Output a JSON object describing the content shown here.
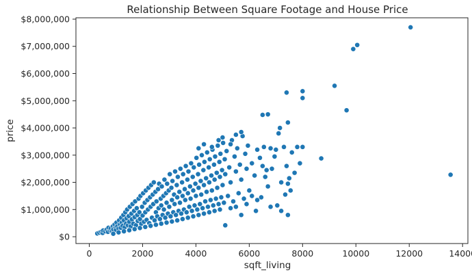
{
  "chart_data": {
    "type": "scatter",
    "title": "Relationship Between Square Footage and House Price",
    "xlabel": "sqft_living",
    "ylabel": "price",
    "xlim": [
      -500,
      14200
    ],
    "ylim": [
      -250000,
      8050000
    ],
    "xticks": [
      0,
      2000,
      4000,
      6000,
      8000,
      10000,
      12000,
      14000
    ],
    "xtick_labels": [
      "0",
      "2000",
      "4000",
      "6000",
      "8000",
      "10000",
      "12000",
      "14000"
    ],
    "yticks": [
      0,
      1000000,
      2000000,
      3000000,
      4000000,
      5000000,
      6000000,
      7000000,
      8000000
    ],
    "ytick_labels": [
      "$0",
      "$1,000,000",
      "$2,000,000",
      "$3,000,000",
      "$4,000,000",
      "$5,000,000",
      "$6,000,000",
      "$7,000,000",
      "$8,000,000"
    ],
    "grid": false,
    "marker_color": "#1f77b4",
    "marker_edge_color": "#ffffff",
    "series": [
      {
        "points": [
          [
            300,
            120000
          ],
          [
            380,
            150000
          ],
          [
            450,
            180000
          ],
          [
            500,
            140000
          ],
          [
            520,
            230000
          ],
          [
            600,
            200000
          ],
          [
            650,
            260000
          ],
          [
            700,
            180000
          ],
          [
            720,
            330000
          ],
          [
            780,
            240000
          ],
          [
            800,
            300000
          ],
          [
            850,
            210000
          ],
          [
            880,
            380000
          ],
          [
            900,
            270000
          ],
          [
            950,
            450000
          ],
          [
            980,
            320000
          ],
          [
            1000,
            250000
          ],
          [
            1020,
            520000
          ],
          [
            1050,
            380000
          ],
          [
            1100,
            300000
          ],
          [
            1120,
            600000
          ],
          [
            1150,
            450000
          ],
          [
            1180,
            330000
          ],
          [
            1200,
            700000
          ],
          [
            1220,
            520000
          ],
          [
            1250,
            400000
          ],
          [
            1280,
            800000
          ],
          [
            1300,
            600000
          ],
          [
            1330,
            350000
          ],
          [
            1350,
            900000
          ],
          [
            1380,
            480000
          ],
          [
            1400,
            680000
          ],
          [
            1420,
            1000000
          ],
          [
            1450,
            420000
          ],
          [
            1480,
            760000
          ],
          [
            1500,
            550000
          ],
          [
            1520,
            1100000
          ],
          [
            1550,
            380000
          ],
          [
            1580,
            850000
          ],
          [
            1600,
            640000
          ],
          [
            1620,
            1200000
          ],
          [
            1650,
            480000
          ],
          [
            1680,
            950000
          ],
          [
            1700,
            720000
          ],
          [
            1720,
            1300000
          ],
          [
            1750,
            420000
          ],
          [
            1780,
            1050000
          ],
          [
            1800,
            800000
          ],
          [
            1820,
            580000
          ],
          [
            1850,
            1400000
          ],
          [
            1880,
            900000
          ],
          [
            1900,
            650000
          ],
          [
            1920,
            1500000
          ],
          [
            1950,
            480000
          ],
          [
            1980,
            1100000
          ],
          [
            2000,
            780000
          ],
          [
            2020,
            1600000
          ],
          [
            2050,
            550000
          ],
          [
            2080,
            1250000
          ],
          [
            2100,
            900000
          ],
          [
            2120,
            1700000
          ],
          [
            2150,
            620000
          ],
          [
            2180,
            1350000
          ],
          [
            2200,
            1000000
          ],
          [
            2220,
            1800000
          ],
          [
            2250,
            500000
          ],
          [
            2280,
            1450000
          ],
          [
            2300,
            1100000
          ],
          [
            2320,
            1900000
          ],
          [
            2350,
            700000
          ],
          [
            2380,
            1550000
          ],
          [
            2400,
            1200000
          ],
          [
            2420,
            2000000
          ],
          [
            2450,
            600000
          ],
          [
            2480,
            1650000
          ],
          [
            2500,
            900000
          ],
          [
            2520,
            1300000
          ],
          [
            2550,
            750000
          ],
          [
            2580,
            1750000
          ],
          [
            2600,
            1050000
          ],
          [
            2620,
            1950000
          ],
          [
            2650,
            650000
          ],
          [
            2680,
            1400000
          ],
          [
            2700,
            1150000
          ],
          [
            2720,
            1850000
          ],
          [
            2750,
            800000
          ],
          [
            2780,
            1500000
          ],
          [
            2800,
            1000000
          ],
          [
            2820,
            2100000
          ],
          [
            2850,
            700000
          ],
          [
            2880,
            1600000
          ],
          [
            2900,
            1250000
          ],
          [
            2920,
            1950000
          ],
          [
            2950,
            850000
          ],
          [
            2980,
            1700000
          ],
          [
            3000,
            1100000
          ],
          [
            3020,
            2300000
          ],
          [
            3050,
            750000
          ],
          [
            3080,
            1800000
          ],
          [
            3100,
            1350000
          ],
          [
            3120,
            2050000
          ],
          [
            3150,
            900000
          ],
          [
            3180,
            1550000
          ],
          [
            3200,
            1200000
          ],
          [
            3220,
            2400000
          ],
          [
            3250,
            800000
          ],
          [
            3280,
            1900000
          ],
          [
            3300,
            1450000
          ],
          [
            3320,
            2200000
          ],
          [
            3350,
            950000
          ],
          [
            3380,
            1650000
          ],
          [
            3400,
            1250000
          ],
          [
            3420,
            2500000
          ],
          [
            3450,
            850000
          ],
          [
            3480,
            2000000
          ],
          [
            3500,
            1500000
          ],
          [
            3520,
            2300000
          ],
          [
            3550,
            1000000
          ],
          [
            3580,
            1750000
          ],
          [
            3600,
            1350000
          ],
          [
            3620,
            2600000
          ],
          [
            3650,
            900000
          ],
          [
            3680,
            2100000
          ],
          [
            3700,
            1600000
          ],
          [
            3720,
            2400000
          ],
          [
            3750,
            1100000
          ],
          [
            3780,
            1850000
          ],
          [
            3800,
            1400000
          ],
          [
            3820,
            2700000
          ],
          [
            3850,
            950000
          ],
          [
            3880,
            2200000
          ],
          [
            3900,
            1700000
          ],
          [
            3920,
            2550000
          ],
          [
            3950,
            1150000
          ],
          [
            3980,
            1950000
          ],
          [
            4000,
            1500000
          ],
          [
            4020,
            2900000
          ],
          [
            4050,
            1000000
          ],
          [
            4080,
            2300000
          ],
          [
            4100,
            1800000
          ],
          [
            4120,
            2650000
          ],
          [
            4150,
            1200000
          ],
          [
            4180,
            2050000
          ],
          [
            4200,
            1550000
          ],
          [
            4220,
            3000000
          ],
          [
            4250,
            1050000
          ],
          [
            4280,
            2450000
          ],
          [
            4300,
            1900000
          ],
          [
            4320,
            2750000
          ],
          [
            4350,
            1300000
          ],
          [
            4380,
            2150000
          ],
          [
            4400,
            1650000
          ],
          [
            4420,
            3100000
          ],
          [
            4450,
            1100000
          ],
          [
            4480,
            2550000
          ],
          [
            4500,
            2000000
          ],
          [
            4520,
            2850000
          ],
          [
            4550,
            1350000
          ],
          [
            4580,
            2250000
          ],
          [
            4600,
            1700000
          ],
          [
            4620,
            3200000
          ],
          [
            4650,
            1150000
          ],
          [
            4680,
            2650000
          ],
          [
            4700,
            2100000
          ],
          [
            4720,
            2950000
          ],
          [
            4750,
            1400000
          ],
          [
            4780,
            2350000
          ],
          [
            4800,
            1800000
          ],
          [
            4820,
            3350000
          ],
          [
            4850,
            1200000
          ],
          [
            4880,
            2750000
          ],
          [
            4900,
            2200000
          ],
          [
            4920,
            3050000
          ],
          [
            4950,
            1450000
          ],
          [
            4980,
            2450000
          ],
          [
            5000,
            1900000
          ],
          [
            5020,
            3450000
          ],
          [
            5050,
            1250000
          ],
          [
            5080,
            2850000
          ],
          [
            5100,
            2300000
          ],
          [
            5150,
            3150000
          ],
          [
            5200,
            1500000
          ],
          [
            5250,
            2550000
          ],
          [
            5300,
            2000000
          ],
          [
            5350,
            3550000
          ],
          [
            5400,
            1300000
          ],
          [
            5450,
            2950000
          ],
          [
            5500,
            2400000
          ],
          [
            5550,
            3250000
          ],
          [
            5600,
            1600000
          ],
          [
            5650,
            2650000
          ],
          [
            5700,
            2100000
          ],
          [
            5750,
            3700000
          ],
          [
            5800,
            1400000
          ],
          [
            5850,
            3050000
          ],
          [
            5900,
            2500000
          ],
          [
            5950,
            3350000
          ],
          [
            6000,
            1700000
          ],
          [
            4100,
            3250000
          ],
          [
            4300,
            3400000
          ],
          [
            4600,
            3300000
          ],
          [
            4850,
            3550000
          ],
          [
            5000,
            3650000
          ],
          [
            5300,
            3400000
          ],
          [
            5500,
            3750000
          ],
          [
            5700,
            3850000
          ],
          [
            6100,
            2700000
          ],
          [
            6200,
            2250000
          ],
          [
            6300,
            3200000
          ],
          [
            6400,
            2900000
          ],
          [
            6450,
            1450000
          ],
          [
            6500,
            2600000
          ],
          [
            6550,
            3300000
          ],
          [
            6600,
            2200000
          ],
          [
            6650,
            2450000
          ],
          [
            6700,
            1850000
          ],
          [
            6800,
            3250000
          ],
          [
            6850,
            2500000
          ],
          [
            6950,
            2950000
          ],
          [
            7000,
            3200000
          ],
          [
            7050,
            1150000
          ],
          [
            7100,
            3800000
          ],
          [
            7150,
            4000000
          ],
          [
            7200,
            2000000
          ],
          [
            7300,
            3300000
          ],
          [
            7350,
            1550000
          ],
          [
            7400,
            2600000
          ],
          [
            7450,
            1950000
          ],
          [
            7500,
            2150000
          ],
          [
            7550,
            1700000
          ],
          [
            7600,
            3100000
          ],
          [
            7700,
            2350000
          ],
          [
            7800,
            3300000
          ],
          [
            7900,
            2700000
          ],
          [
            8000,
            3300000
          ],
          [
            7450,
            800000
          ],
          [
            7200,
            950000
          ],
          [
            6800,
            1100000
          ],
          [
            6300,
            1350000
          ],
          [
            6500,
            4480000
          ],
          [
            6700,
            4500000
          ],
          [
            7400,
            5300000
          ],
          [
            7450,
            4200000
          ],
          [
            8000,
            5350000
          ],
          [
            8000,
            5100000
          ],
          [
            8700,
            2880000
          ],
          [
            9200,
            5550000
          ],
          [
            9650,
            4650000
          ],
          [
            9900,
            6900000
          ],
          [
            10050,
            7050000
          ],
          [
            12050,
            7700000
          ],
          [
            13550,
            2280000
          ],
          [
            900,
            110000
          ],
          [
            1100,
            160000
          ],
          [
            1300,
            200000
          ],
          [
            1500,
            240000
          ],
          [
            1700,
            280000
          ],
          [
            1900,
            320000
          ],
          [
            2100,
            360000
          ],
          [
            2300,
            400000
          ],
          [
            2500,
            440000
          ],
          [
            2700,
            480000
          ],
          [
            2900,
            520000
          ],
          [
            3100,
            560000
          ],
          [
            3300,
            600000
          ],
          [
            3500,
            650000
          ],
          [
            3700,
            700000
          ],
          [
            3900,
            750000
          ],
          [
            4100,
            800000
          ],
          [
            4300,
            850000
          ],
          [
            4500,
            900000
          ],
          [
            4700,
            950000
          ],
          [
            4900,
            1000000
          ],
          [
            5100,
            420000
          ],
          [
            5300,
            1050000
          ],
          [
            5500,
            1100000
          ],
          [
            5700,
            800000
          ],
          [
            5900,
            1200000
          ],
          [
            6100,
            1500000
          ],
          [
            6250,
            950000
          ]
        ]
      }
    ]
  }
}
